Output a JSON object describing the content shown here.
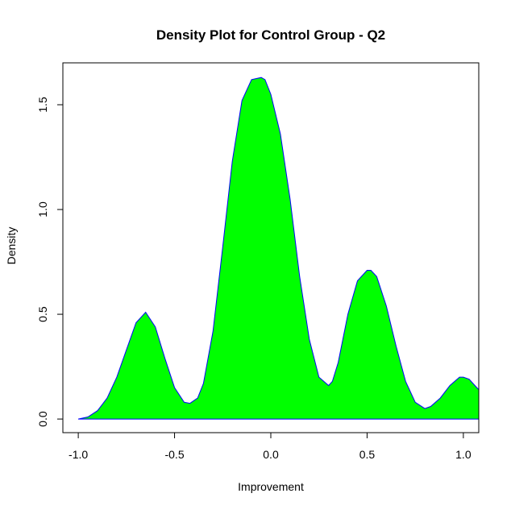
{
  "chart_data": {
    "type": "area",
    "title": "Density Plot for Control Group - Q2",
    "xlabel": "Improvement",
    "ylabel": "Density",
    "xlim": [
      -1.08,
      1.08
    ],
    "ylim": [
      -0.065,
      1.7
    ],
    "xticks": [
      -1.0,
      -0.5,
      0.0,
      0.5,
      1.0
    ],
    "xtick_labels": [
      "-1.0",
      "-0.5",
      "0.0",
      "0.5",
      "1.0"
    ],
    "yticks": [
      0.0,
      0.5,
      1.0,
      1.5
    ],
    "ytick_labels": [
      "0.0",
      "0.5",
      "1.0",
      "1.5"
    ],
    "grid": false,
    "legend": "none",
    "fill_color": "#00ff00",
    "line_color": "#0000ff",
    "series": [
      {
        "x": [
          -1.0,
          -0.95,
          -0.9,
          -0.85,
          -0.8,
          -0.75,
          -0.7,
          -0.65,
          -0.6,
          -0.55,
          -0.5,
          -0.45,
          -0.42,
          -0.38,
          -0.35,
          -0.3,
          -0.25,
          -0.2,
          -0.15,
          -0.1,
          -0.05,
          -0.03,
          0.0,
          0.05,
          0.1,
          0.15,
          0.2,
          0.25,
          0.3,
          0.32,
          0.35,
          0.4,
          0.45,
          0.5,
          0.52,
          0.55,
          0.6,
          0.65,
          0.7,
          0.75,
          0.8,
          0.83,
          0.88,
          0.93,
          0.98,
          1.0,
          1.03,
          1.06,
          1.08
        ],
        "y": [
          0.0,
          0.01,
          0.04,
          0.1,
          0.2,
          0.33,
          0.46,
          0.51,
          0.44,
          0.29,
          0.15,
          0.08,
          0.075,
          0.1,
          0.17,
          0.42,
          0.82,
          1.23,
          1.52,
          1.62,
          1.63,
          1.62,
          1.55,
          1.36,
          1.05,
          0.68,
          0.38,
          0.2,
          0.16,
          0.18,
          0.27,
          0.5,
          0.66,
          0.71,
          0.71,
          0.68,
          0.54,
          0.35,
          0.18,
          0.08,
          0.05,
          0.06,
          0.1,
          0.16,
          0.2,
          0.2,
          0.19,
          0.16,
          0.14
        ]
      }
    ]
  }
}
